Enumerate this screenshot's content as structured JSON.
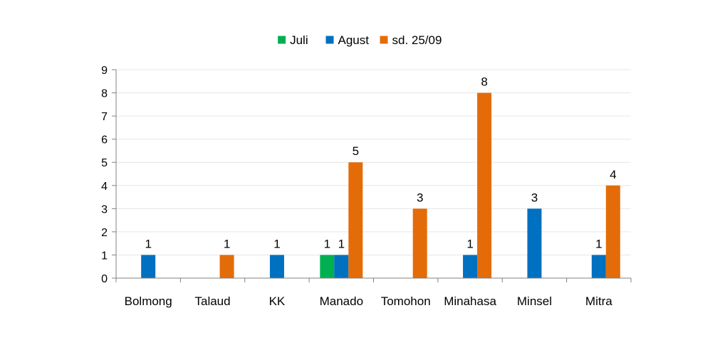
{
  "chart_data": {
    "type": "bar",
    "title": "",
    "xlabel": "",
    "ylabel": "",
    "ylim": [
      0,
      9
    ],
    "yticks": [
      0,
      1,
      2,
      3,
      4,
      5,
      6,
      7,
      8,
      9
    ],
    "grid": true,
    "legend_position": "top-center",
    "categories": [
      "Bolmong",
      "Talaud",
      "KK",
      "Manado",
      "Tomohon",
      "Minahasa",
      "Minsel",
      "Mitra"
    ],
    "series": [
      {
        "name": "Juli",
        "color": "#00b050",
        "values": [
          null,
          null,
          null,
          1,
          null,
          null,
          null,
          null
        ]
      },
      {
        "name": "Agust",
        "color": "#0070c0",
        "values": [
          1,
          null,
          1,
          1,
          null,
          1,
          3,
          1
        ]
      },
      {
        "name": "sd. 25/09",
        "color": "#e36c09",
        "values": [
          null,
          1,
          null,
          5,
          3,
          8,
          null,
          4
        ]
      }
    ],
    "data_labels": [
      {
        "category": "Bolmong",
        "series": "Agust",
        "text": "1"
      },
      {
        "category": "Talaud",
        "series": "sd. 25/09",
        "text": "1"
      },
      {
        "category": "KK",
        "series": "Agust",
        "text": "1"
      },
      {
        "category": "Manado",
        "series": "Juli",
        "text": "1"
      },
      {
        "category": "Manado",
        "series": "Agust",
        "text": "1"
      },
      {
        "category": "Manado",
        "series": "sd. 25/09",
        "text": "5"
      },
      {
        "category": "Tomohon",
        "series": "sd. 25/09",
        "text": "3"
      },
      {
        "category": "Minahasa",
        "series": "Agust",
        "text": "1"
      },
      {
        "category": "Minahasa",
        "series": "sd. 25/09",
        "text": "8"
      },
      {
        "category": "Minsel",
        "series": "Agust",
        "text": "3"
      },
      {
        "category": "Mitra",
        "series": "Agust",
        "text": "1"
      },
      {
        "category": "Mitra",
        "series": "sd. 25/09",
        "text": "4"
      }
    ]
  }
}
